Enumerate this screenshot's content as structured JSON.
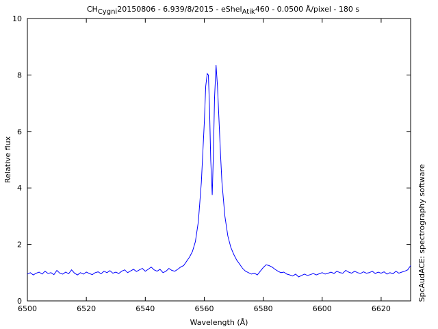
{
  "chart_data": {
    "type": "line",
    "title": {
      "prefix": "CH",
      "sub1": "Cygni",
      "mid1": "20150806 - 6.939/8/2015 - eShel",
      "sub2": "Atik",
      "rest": "460 - 0.0500 Å/pixel - 180 s"
    },
    "xlabel": "Wavelength (Å)",
    "ylabel": "Relative flux",
    "right_label": "SpcAudACE: spectrography software",
    "xlim": [
      6500,
      6630
    ],
    "ylim": [
      0,
      10
    ],
    "xticks": [
      6500,
      6520,
      6540,
      6560,
      6580,
      6600,
      6620
    ],
    "yticks": [
      0,
      2,
      4,
      6,
      8,
      10
    ],
    "grid": false,
    "line_color": "#0000ff",
    "series": [
      {
        "points": [
          [
            6500,
            0.95
          ],
          [
            6501,
            1.0
          ],
          [
            6502,
            0.92
          ],
          [
            6503,
            0.98
          ],
          [
            6504,
            1.02
          ],
          [
            6505,
            0.95
          ],
          [
            6506,
            1.05
          ],
          [
            6507,
            0.97
          ],
          [
            6508,
            1.0
          ],
          [
            6509,
            0.93
          ],
          [
            6510,
            1.08
          ],
          [
            6511,
            0.98
          ],
          [
            6512,
            0.95
          ],
          [
            6513,
            1.02
          ],
          [
            6514,
            0.96
          ],
          [
            6515,
            1.1
          ],
          [
            6516,
            0.98
          ],
          [
            6517,
            0.92
          ],
          [
            6518,
            1.0
          ],
          [
            6519,
            0.95
          ],
          [
            6520,
            1.02
          ],
          [
            6521,
            0.97
          ],
          [
            6522,
            0.93
          ],
          [
            6523,
            1.0
          ],
          [
            6524,
            1.03
          ],
          [
            6525,
            0.96
          ],
          [
            6526,
            1.05
          ],
          [
            6527,
            1.0
          ],
          [
            6528,
            1.07
          ],
          [
            6529,
            0.98
          ],
          [
            6530,
            1.02
          ],
          [
            6531,
            0.97
          ],
          [
            6532,
            1.05
          ],
          [
            6533,
            1.1
          ],
          [
            6534,
            1.0
          ],
          [
            6535,
            1.06
          ],
          [
            6536,
            1.12
          ],
          [
            6537,
            1.04
          ],
          [
            6538,
            1.1
          ],
          [
            6539,
            1.15
          ],
          [
            6540,
            1.05
          ],
          [
            6541,
            1.12
          ],
          [
            6542,
            1.2
          ],
          [
            6543,
            1.1
          ],
          [
            6544,
            1.05
          ],
          [
            6545,
            1.12
          ],
          [
            6546,
            1.0
          ],
          [
            6547,
            1.05
          ],
          [
            6548,
            1.15
          ],
          [
            6549,
            1.08
          ],
          [
            6550,
            1.05
          ],
          [
            6551,
            1.12
          ],
          [
            6552,
            1.2
          ],
          [
            6553,
            1.25
          ],
          [
            6554,
            1.4
          ],
          [
            6555,
            1.55
          ],
          [
            6556,
            1.75
          ],
          [
            6557,
            2.1
          ],
          [
            6558,
            2.8
          ],
          [
            6559,
            4.2
          ],
          [
            6560,
            6.3
          ],
          [
            6560.5,
            7.6
          ],
          [
            6561,
            8.05
          ],
          [
            6561.4,
            8.0
          ],
          [
            6561.8,
            6.8
          ],
          [
            6562.2,
            5.0
          ],
          [
            6562.7,
            3.75
          ],
          [
            6563.1,
            5.2
          ],
          [
            6563.5,
            7.2
          ],
          [
            6564,
            8.35
          ],
          [
            6564.5,
            7.6
          ],
          [
            6565,
            6.4
          ],
          [
            6565.5,
            5.2
          ],
          [
            6566,
            4.2
          ],
          [
            6567,
            3.0
          ],
          [
            6568,
            2.3
          ],
          [
            6569,
            1.9
          ],
          [
            6570,
            1.65
          ],
          [
            6571,
            1.45
          ],
          [
            6572,
            1.3
          ],
          [
            6573,
            1.15
          ],
          [
            6574,
            1.05
          ],
          [
            6575,
            1.0
          ],
          [
            6576,
            0.95
          ],
          [
            6577,
            0.98
          ],
          [
            6578,
            0.92
          ],
          [
            6579,
            1.05
          ],
          [
            6580,
            1.18
          ],
          [
            6581,
            1.28
          ],
          [
            6582,
            1.25
          ],
          [
            6583,
            1.2
          ],
          [
            6584,
            1.12
          ],
          [
            6585,
            1.05
          ],
          [
            6586,
            1.0
          ],
          [
            6587,
            1.02
          ],
          [
            6588,
            0.95
          ],
          [
            6589,
            0.92
          ],
          [
            6590,
            0.88
          ],
          [
            6591,
            0.95
          ],
          [
            6592,
            0.85
          ],
          [
            6593,
            0.9
          ],
          [
            6594,
            0.95
          ],
          [
            6595,
            0.9
          ],
          [
            6596,
            0.93
          ],
          [
            6597,
            0.97
          ],
          [
            6598,
            0.92
          ],
          [
            6599,
            0.96
          ],
          [
            6600,
            1.0
          ],
          [
            6601,
            0.95
          ],
          [
            6602,
            0.98
          ],
          [
            6603,
            1.02
          ],
          [
            6604,
            0.97
          ],
          [
            6605,
            1.05
          ],
          [
            6606,
            1.0
          ],
          [
            6607,
            0.98
          ],
          [
            6608,
            1.08
          ],
          [
            6609,
            1.02
          ],
          [
            6610,
            0.98
          ],
          [
            6611,
            1.05
          ],
          [
            6612,
            1.0
          ],
          [
            6613,
            0.97
          ],
          [
            6614,
            1.03
          ],
          [
            6615,
            0.98
          ],
          [
            6616,
            1.0
          ],
          [
            6617,
            1.05
          ],
          [
            6618,
            0.97
          ],
          [
            6619,
            1.02
          ],
          [
            6620,
            0.98
          ],
          [
            6621,
            1.03
          ],
          [
            6622,
            0.95
          ],
          [
            6623,
            1.0
          ],
          [
            6624,
            0.96
          ],
          [
            6625,
            1.05
          ],
          [
            6626,
            0.98
          ],
          [
            6627,
            1.02
          ],
          [
            6628,
            1.05
          ],
          [
            6629,
            1.1
          ],
          [
            6630,
            1.25
          ]
        ]
      }
    ]
  }
}
